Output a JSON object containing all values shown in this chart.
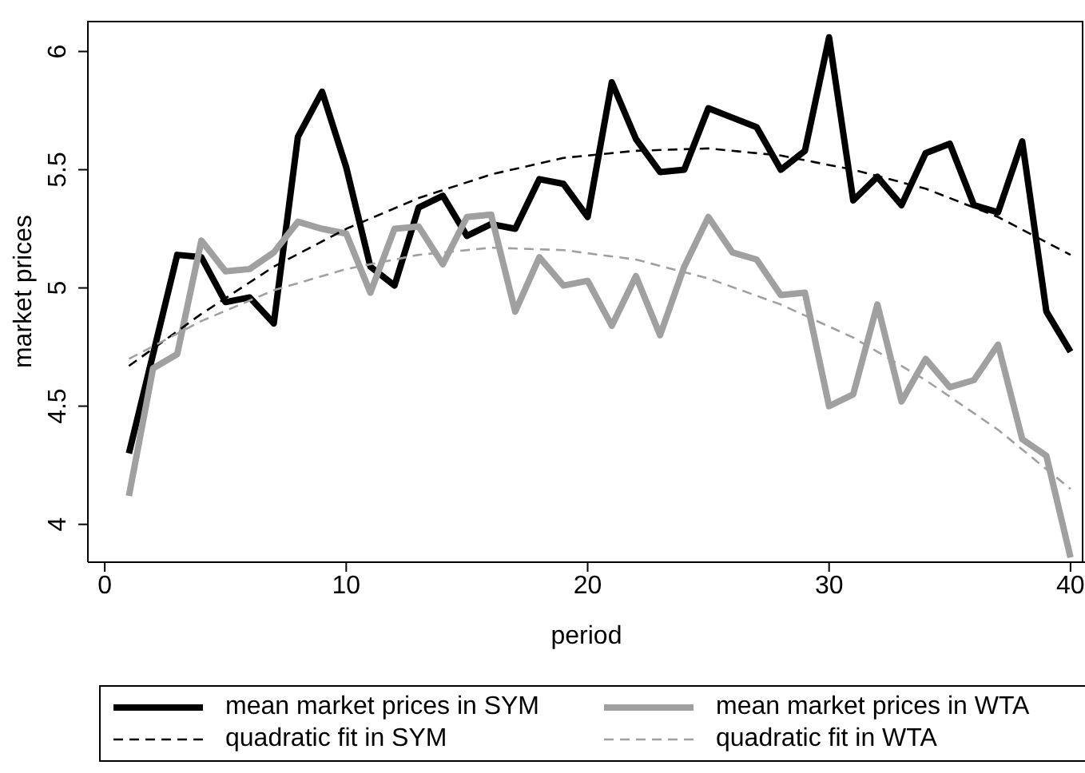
{
  "chart_data": {
    "type": "line",
    "xlabel": "period",
    "ylabel": "market prices",
    "xlim": [
      -0.7,
      40.6
    ],
    "xticks": [
      0,
      10,
      20,
      30,
      40
    ],
    "ylim": [
      3.84,
      6.13
    ],
    "yticks": [
      4,
      4.5,
      5,
      5.5,
      6
    ],
    "grid": false,
    "legend": "bottom",
    "marker": "none",
    "series": [
      {
        "name": "mean market prices in SYM",
        "color": "#000000",
        "line_style": "solid",
        "x": [
          1,
          2,
          3,
          4,
          5,
          6,
          7,
          8,
          9,
          10,
          11,
          12,
          13,
          14,
          15,
          16,
          17,
          18,
          19,
          20,
          21,
          22,
          23,
          24,
          25,
          26,
          27,
          28,
          29,
          30,
          31,
          32,
          33,
          34,
          35,
          36,
          37,
          38,
          39,
          40
        ],
        "values": [
          4.3,
          4.72,
          5.14,
          5.13,
          4.94,
          4.96,
          4.85,
          5.64,
          5.83,
          5.51,
          5.09,
          5.01,
          5.34,
          5.39,
          5.22,
          5.27,
          5.25,
          5.46,
          5.44,
          5.3,
          5.87,
          5.63,
          5.49,
          5.5,
          5.76,
          5.72,
          5.68,
          5.5,
          5.58,
          6.06,
          5.37,
          5.47,
          5.35,
          5.57,
          5.61,
          5.35,
          5.32,
          5.62,
          4.9,
          4.73
        ]
      },
      {
        "name": "mean market prices in WTA",
        "color": "#a0a0a0",
        "line_style": "solid",
        "x": [
          1,
          2,
          3,
          4,
          5,
          6,
          7,
          8,
          9,
          10,
          11,
          12,
          13,
          14,
          15,
          16,
          17,
          18,
          19,
          20,
          21,
          22,
          23,
          24,
          25,
          26,
          27,
          28,
          29,
          30,
          31,
          32,
          33,
          34,
          35,
          36,
          37,
          38,
          39,
          40
        ],
        "values": [
          4.12,
          4.66,
          4.72,
          5.2,
          5.07,
          5.08,
          5.15,
          5.28,
          5.25,
          5.23,
          4.98,
          5.25,
          5.26,
          5.1,
          5.3,
          5.31,
          4.9,
          5.13,
          5.01,
          5.03,
          4.84,
          5.05,
          4.8,
          5.09,
          5.3,
          5.15,
          5.12,
          4.97,
          4.98,
          4.5,
          4.55,
          4.93,
          4.52,
          4.7,
          4.58,
          4.61,
          4.76,
          4.36,
          4.29,
          3.86
        ]
      },
      {
        "name": "quadratic fit in SYM",
        "color": "#000000",
        "line_style": "dashed",
        "x": [
          1,
          4,
          7,
          10,
          13,
          16,
          19,
          22,
          25,
          28,
          31,
          34,
          37,
          40
        ],
        "values": [
          4.67,
          4.89,
          5.09,
          5.25,
          5.38,
          5.48,
          5.55,
          5.58,
          5.59,
          5.56,
          5.5,
          5.42,
          5.3,
          5.14
        ]
      },
      {
        "name": "quadratic fit in WTA",
        "color": "#a0a0a0",
        "line_style": "dashed",
        "x": [
          1,
          4,
          7,
          10,
          13,
          16,
          19,
          22,
          25,
          28,
          31,
          34,
          37,
          40
        ],
        "values": [
          4.7,
          4.86,
          4.99,
          5.08,
          5.14,
          5.17,
          5.16,
          5.12,
          5.04,
          4.93,
          4.79,
          4.61,
          4.4,
          4.15
        ]
      }
    ]
  }
}
